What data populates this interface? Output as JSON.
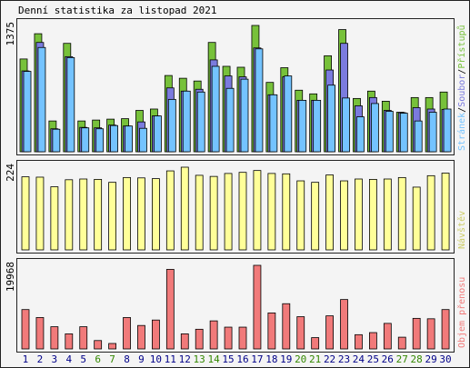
{
  "chart_data": {
    "type": "bar",
    "title": "Denní statistika za listopad 2021",
    "categories": [
      "1",
      "2",
      "3",
      "4",
      "5",
      "6",
      "7",
      "8",
      "9",
      "10",
      "11",
      "12",
      "13",
      "14",
      "15",
      "16",
      "17",
      "18",
      "19",
      "20",
      "21",
      "22",
      "23",
      "24",
      "25",
      "26",
      "27",
      "28",
      "29",
      "30"
    ],
    "weekend_days": [
      "6",
      "7",
      "13",
      "14",
      "20",
      "21",
      "27",
      "28"
    ],
    "colors": {
      "hits": "#77c13a",
      "files": "#7b7bde",
      "pages": "#74c3ff",
      "visits": "#ffff99",
      "kbytes": "#f17a7a",
      "weekend_label": "#338800",
      "weekday_label": "#000088"
    },
    "panels": [
      {
        "id": "hits",
        "ymax_label": "1375",
        "ymax": 1375,
        "legend": [
          {
            "text": "Stránek",
            "color": "#74c3ff"
          },
          {
            "text": "/",
            "color": "#000000"
          },
          {
            "text": "Soubor",
            "color": "#7b7bde"
          },
          {
            "text": "/",
            "color": "#000000"
          },
          {
            "text": "Přístupů",
            "color": "#77c13a"
          }
        ],
        "series": [
          {
            "name": "Přístupů",
            "values": [
              1010,
              1285,
              335,
              1180,
              335,
              345,
              355,
              360,
              450,
              465,
              830,
              800,
              770,
              1190,
              930,
              920,
              1375,
              755,
              915,
              670,
              630,
              1045,
              1330,
              580,
              660,
              550,
              430,
              590,
              590,
              650
            ]
          },
          {
            "name": "Soubor",
            "values": [
              880,
              1190,
              250,
              1035,
              265,
              260,
              290,
              280,
              325,
              390,
              695,
              660,
              680,
              1000,
              825,
              815,
              1130,
              620,
              815,
              560,
              560,
              890,
              1180,
              500,
              590,
              450,
              425,
              480,
              465,
              460
            ]
          },
          {
            "name": "Stránek",
            "values": [
              875,
              1135,
              245,
              1025,
              260,
              250,
              285,
              280,
              255,
              390,
              570,
              660,
              650,
              930,
              690,
              790,
              1120,
              620,
              825,
              560,
              560,
              725,
              585,
              380,
              525,
              440,
              420,
              335,
              430,
              465
            ]
          }
        ]
      },
      {
        "id": "visits",
        "ymax_label": "224",
        "ymax": 224,
        "legend": [
          {
            "text": "Návštěv",
            "color": "#cccc66"
          }
        ],
        "series": [
          {
            "name": "Návštěv",
            "values": [
              198,
              197,
              171,
              190,
              192,
              191,
              183,
              196,
              195,
              193,
              214,
              224,
              202,
              199,
              207,
              210,
              215,
              207,
              206,
              187,
              183,
              203,
              187,
              192,
              191,
              192,
              196,
              170,
              201,
              208
            ]
          }
        ]
      },
      {
        "id": "kbytes",
        "ymax_label": "19968",
        "ymax": 19968,
        "legend": [
          {
            "text": "Objem přenosu",
            "color": "#f17a7a"
          }
        ],
        "series": [
          {
            "name": "Objem přenosu",
            "values": [
              9400,
              7500,
              5300,
              3600,
              5300,
              2000,
              1300,
              7500,
              5600,
              6900,
              19000,
              3600,
              4700,
              6700,
              5200,
              5200,
              19968,
              8600,
              10800,
              7700,
              2700,
              7900,
              11800,
              3400,
              3900,
              6100,
              2800,
              7300,
              7200,
              9400
            ]
          }
        ]
      }
    ]
  }
}
